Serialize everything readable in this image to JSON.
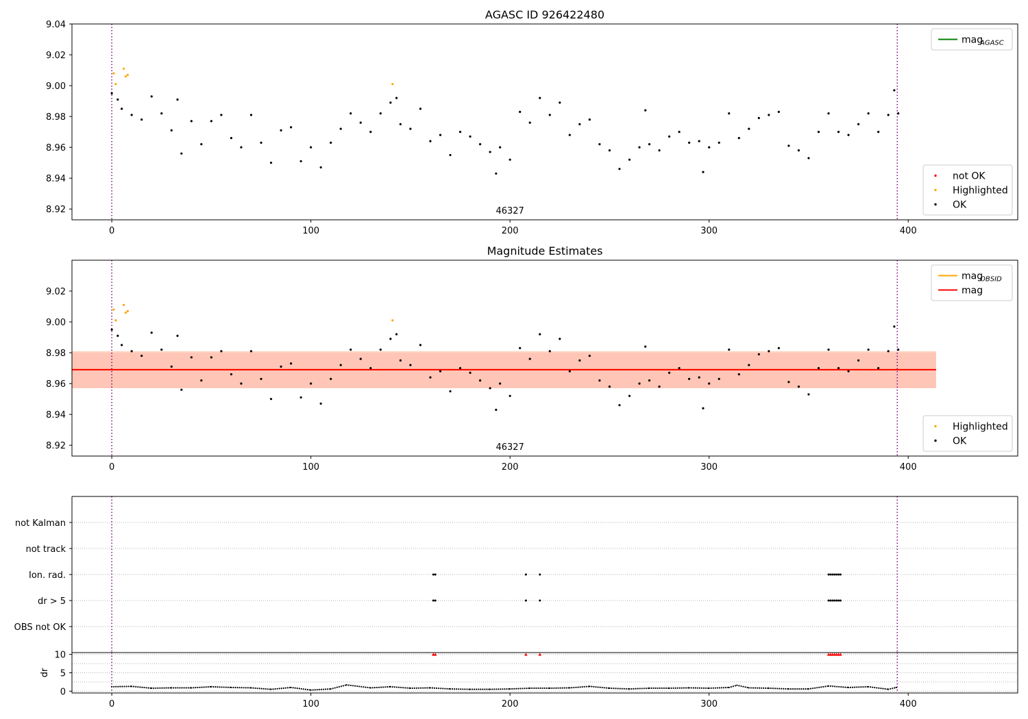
{
  "chart_data": [
    {
      "type": "scatter",
      "title": "AGASC ID 926422480",
      "annotation": "46327",
      "xlim": [
        -20,
        455
      ],
      "ylim": [
        8.913,
        9.04
      ],
      "x_ticks": [
        0,
        100,
        200,
        300,
        400
      ],
      "y_ticks": [
        8.92,
        8.94,
        8.96,
        8.98,
        9.0,
        9.02,
        9.04
      ],
      "vlines": [
        0,
        394.5
      ],
      "grid": false,
      "legends": [
        {
          "placement": "top-right",
          "entries": [
            {
              "label": "mag",
              "sub": "AGASC",
              "color": "#008000",
              "kind": "line"
            }
          ]
        },
        {
          "placement": "bottom-right",
          "entries": [
            {
              "label": "not OK",
              "color": "#ff0000",
              "kind": "dot"
            },
            {
              "label": "Highlighted",
              "color": "#ffa500",
              "kind": "dot"
            },
            {
              "label": "OK",
              "color": "#000000",
              "kind": "dot"
            }
          ]
        }
      ],
      "series": [
        {
          "name": "Highlighted",
          "x": [
            1,
            2,
            6,
            7,
            8,
            141
          ],
          "y": [
            9.008,
            9.001,
            9.011,
            9.006,
            9.007,
            9.001
          ]
        },
        {
          "name": "OK",
          "x": [
            0,
            3,
            5,
            10,
            15,
            20,
            25,
            30,
            33,
            35,
            40,
            45,
            50,
            55,
            60,
            65,
            70,
            75,
            80,
            85,
            90,
            95,
            100,
            105,
            110,
            115,
            120,
            125,
            130,
            135,
            140,
            143,
            145,
            150,
            155,
            160,
            165,
            170,
            175,
            180,
            185,
            190,
            193,
            195,
            200,
            205,
            210,
            215,
            220,
            225,
            230,
            235,
            240,
            245,
            250,
            255,
            260,
            265,
            268,
            270,
            275,
            280,
            285,
            290,
            295,
            297,
            300,
            305,
            310,
            315,
            320,
            325,
            330,
            335,
            340,
            345,
            350,
            355,
            360,
            365,
            370,
            375,
            380,
            385,
            390,
            393,
            395
          ],
          "y": [
            8.995,
            8.991,
            8.985,
            8.981,
            8.978,
            8.993,
            8.982,
            8.971,
            8.991,
            8.956,
            8.977,
            8.962,
            8.977,
            8.981,
            8.966,
            8.96,
            8.981,
            8.963,
            8.95,
            8.971,
            8.973,
            8.951,
            8.96,
            8.947,
            8.963,
            8.972,
            8.982,
            8.976,
            8.97,
            8.982,
            8.989,
            8.992,
            8.975,
            8.972,
            8.985,
            8.964,
            8.968,
            8.955,
            8.97,
            8.967,
            8.962,
            8.957,
            8.943,
            8.96,
            8.952,
            8.983,
            8.976,
            8.992,
            8.981,
            8.989,
            8.968,
            8.975,
            8.978,
            8.962,
            8.958,
            8.946,
            8.952,
            8.96,
            8.984,
            8.962,
            8.958,
            8.967,
            8.97,
            8.963,
            8.964,
            8.944,
            8.96,
            8.963,
            8.982,
            8.966,
            8.972,
            8.979,
            8.981,
            8.983,
            8.961,
            8.958,
            8.953,
            8.97,
            8.982,
            8.97,
            8.968,
            8.975,
            8.982,
            8.97,
            8.981,
            8.997,
            8.982
          ]
        }
      ]
    },
    {
      "type": "scatter",
      "title": "Magnitude Estimates",
      "annotation": "46327",
      "xlim": [
        -20,
        455
      ],
      "ylim": [
        8.913,
        9.04
      ],
      "x_ticks": [
        0,
        100,
        200,
        300,
        400
      ],
      "y_ticks": [
        8.92,
        8.94,
        8.96,
        8.98,
        9.0,
        9.02
      ],
      "vlines": [
        0,
        394.5
      ],
      "grid": false,
      "bands": [
        {
          "x": [
            -20,
            414
          ],
          "y": [
            8.957,
            8.98
          ],
          "color": "#ffc0cb"
        },
        {
          "x": [
            -20,
            414
          ],
          "y": [
            8.957,
            8.981
          ],
          "color": "#ffa07a"
        }
      ],
      "hlines": [
        {
          "y": 8.969,
          "color": "#ffa500",
          "label": "mag",
          "sub": "OBSID"
        },
        {
          "y": 8.969,
          "color": "#ff0000",
          "label": "mag",
          "sub": ""
        }
      ],
      "legends": [
        {
          "placement": "top-right",
          "entries": [
            {
              "label": "mag",
              "sub": "OBSID",
              "color": "#ffa500",
              "kind": "line"
            },
            {
              "label": "mag",
              "sub": "",
              "color": "#ff0000",
              "kind": "line"
            }
          ]
        },
        {
          "placement": "bottom-right",
          "entries": [
            {
              "label": "Highlighted",
              "color": "#ffa500",
              "kind": "dot"
            },
            {
              "label": "OK",
              "color": "#000000",
              "kind": "dot"
            }
          ]
        }
      ],
      "series": [
        {
          "name": "Highlighted",
          "x": [
            1,
            2,
            6,
            7,
            8,
            141
          ],
          "y": [
            9.008,
            9.001,
            9.011,
            9.006,
            9.007,
            9.001
          ]
        },
        {
          "name": "OK",
          "x": [
            0,
            3,
            5,
            10,
            15,
            20,
            25,
            30,
            33,
            35,
            40,
            45,
            50,
            55,
            60,
            65,
            70,
            75,
            80,
            85,
            90,
            95,
            100,
            105,
            110,
            115,
            120,
            125,
            130,
            135,
            140,
            143,
            145,
            150,
            155,
            160,
            165,
            170,
            175,
            180,
            185,
            190,
            193,
            195,
            200,
            205,
            210,
            215,
            220,
            225,
            230,
            235,
            240,
            245,
            250,
            255,
            260,
            265,
            268,
            270,
            275,
            280,
            285,
            290,
            295,
            297,
            300,
            305,
            310,
            315,
            320,
            325,
            330,
            335,
            340,
            345,
            350,
            355,
            360,
            365,
            370,
            375,
            380,
            385,
            390,
            393,
            395
          ],
          "y": [
            8.995,
            8.991,
            8.985,
            8.981,
            8.978,
            8.993,
            8.982,
            8.971,
            8.991,
            8.956,
            8.977,
            8.962,
            8.977,
            8.981,
            8.966,
            8.96,
            8.981,
            8.963,
            8.95,
            8.971,
            8.973,
            8.951,
            8.96,
            8.947,
            8.963,
            8.972,
            8.982,
            8.976,
            8.97,
            8.982,
            8.989,
            8.992,
            8.975,
            8.972,
            8.985,
            8.964,
            8.968,
            8.955,
            8.97,
            8.967,
            8.962,
            8.957,
            8.943,
            8.96,
            8.952,
            8.983,
            8.976,
            8.992,
            8.981,
            8.989,
            8.968,
            8.975,
            8.978,
            8.962,
            8.958,
            8.946,
            8.952,
            8.96,
            8.984,
            8.962,
            8.958,
            8.967,
            8.97,
            8.963,
            8.964,
            8.944,
            8.96,
            8.963,
            8.982,
            8.966,
            8.972,
            8.979,
            8.981,
            8.983,
            8.961,
            8.958,
            8.953,
            8.97,
            8.982,
            8.97,
            8.968,
            8.975,
            8.982,
            8.97,
            8.981,
            8.997,
            8.982
          ]
        }
      ]
    },
    {
      "type": "scatter",
      "title": "",
      "xlim": [
        -20,
        455
      ],
      "categories": [
        "not Kalman",
        "not track",
        "Ion. rad.",
        "dr > 5",
        "OBS not OK"
      ],
      "vlines": [
        0,
        394.5
      ],
      "grid": true,
      "flags": [
        {
          "category": "Ion. rad.",
          "x": [
            161.5,
            162.5,
            208,
            215,
            360,
            361,
            362,
            363,
            364,
            365,
            366
          ]
        },
        {
          "category": "dr > 5",
          "x": [
            161.5,
            162.5,
            208,
            215,
            360,
            361,
            362,
            363,
            364,
            365,
            366
          ]
        }
      ]
    },
    {
      "type": "scatter",
      "title": "",
      "ylabel": "dr",
      "xlim": [
        -20,
        455
      ],
      "ylim": [
        -0.5,
        10.5
      ],
      "x_ticks": [
        0,
        100,
        200,
        300,
        400
      ],
      "y_ticks": [
        0,
        5,
        10
      ],
      "vlines": [
        0,
        394.5
      ],
      "grid": true,
      "series": [
        {
          "name": "dr",
          "x": [
            0,
            10,
            20,
            30,
            40,
            50,
            60,
            70,
            80,
            90,
            100,
            110,
            118,
            130,
            140,
            150,
            160,
            170,
            180,
            190,
            200,
            210,
            220,
            230,
            240,
            250,
            260,
            270,
            280,
            290,
            300,
            310,
            314,
            320,
            330,
            340,
            350,
            360,
            370,
            380,
            390,
            394
          ],
          "y": [
            1.2,
            1.3,
            0.8,
            0.9,
            0.9,
            1.2,
            1.0,
            0.9,
            0.5,
            1.0,
            0.3,
            0.6,
            1.7,
            0.9,
            1.2,
            0.8,
            0.9,
            0.6,
            0.5,
            0.5,
            0.6,
            0.8,
            0.8,
            0.9,
            1.3,
            0.8,
            0.6,
            0.8,
            0.8,
            0.9,
            0.8,
            1.0,
            1.6,
            0.9,
            0.8,
            0.6,
            0.6,
            1.4,
            1.0,
            1.2,
            0.5,
            1.0
          ]
        },
        {
          "name": "flagged",
          "x": [
            161.5,
            162.5,
            208,
            215,
            360,
            361,
            362,
            363,
            364,
            365,
            366
          ],
          "y": [
            10,
            10,
            10,
            10,
            10,
            10,
            10,
            10,
            10,
            10,
            10
          ]
        }
      ]
    }
  ]
}
